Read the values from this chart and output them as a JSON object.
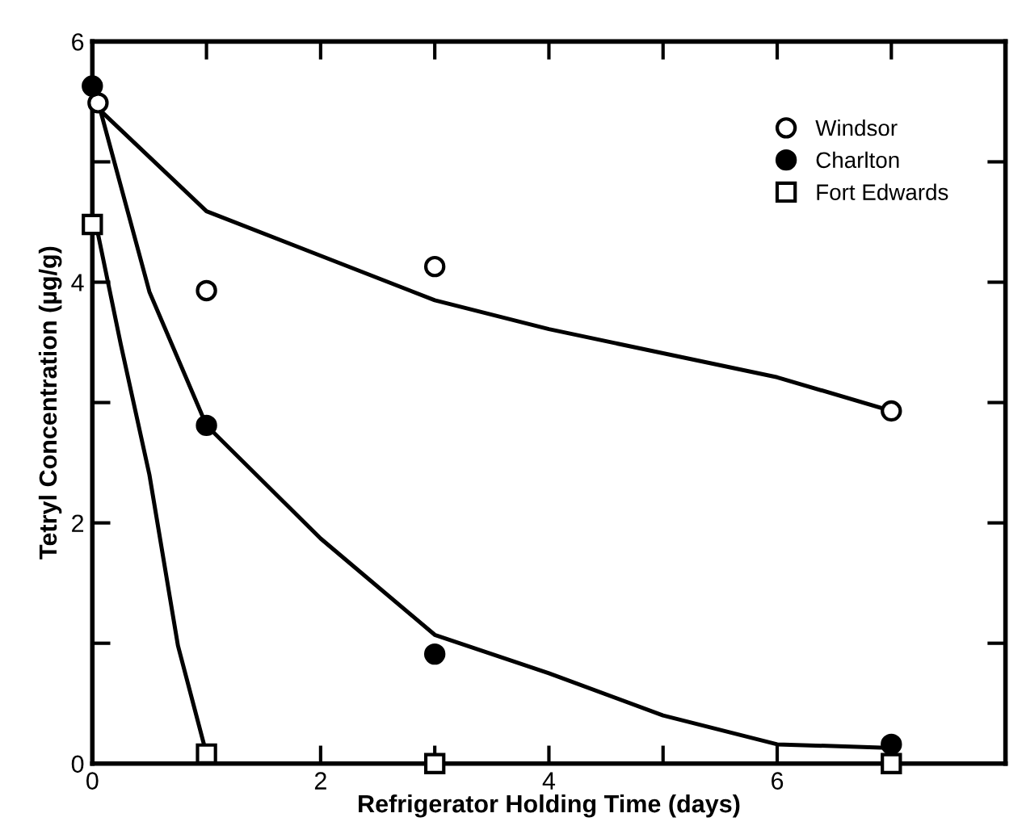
{
  "chart_data": {
    "type": "scatter",
    "xlabel": "Refrigerator Holding Time (days)",
    "ylabel": "Tetryl Concentration (µg/g)",
    "xlim": [
      0,
      8
    ],
    "ylim": [
      0,
      6
    ],
    "xticks": [
      0,
      {
        "value": 1,
        "label": null
      },
      2,
      {
        "value": 3,
        "label": null
      },
      4,
      {
        "value": 5,
        "label": null
      },
      6,
      {
        "value": 7,
        "label": null
      }
    ],
    "yticks": [
      0,
      {
        "value": 1,
        "label": null
      },
      2,
      {
        "value": 3,
        "label": null
      },
      4,
      {
        "value": 5,
        "label": null
      },
      6
    ],
    "grid": false,
    "legend": "top right",
    "series": [
      {
        "name": "Windsor",
        "type": "scatter",
        "marker": "circle",
        "color": "#ffffff",
        "x": [
          0.05,
          1,
          3,
          7
        ],
        "values": [
          5.49,
          3.93,
          4.13,
          2.93
        ]
      },
      {
        "name": "Charlton",
        "type": "scatter",
        "marker": "circle",
        "color": "#000000",
        "x": [
          0,
          1,
          3,
          7
        ],
        "values": [
          5.63,
          2.81,
          0.91,
          0.16
        ]
      },
      {
        "name": "Fort Edwards",
        "type": "scatter",
        "marker": "square",
        "color": "#ffffff",
        "x": [
          0,
          1,
          3,
          7
        ],
        "values": [
          4.48,
          0.08,
          0.0,
          0.0
        ]
      },
      {
        "type": "line",
        "marker": "none",
        "line_style": "solid",
        "color": "#000000",
        "x": [
          0.1,
          1,
          2,
          3,
          4,
          5,
          6,
          7
        ],
        "values": [
          5.4,
          4.59,
          4.22,
          3.85,
          3.61,
          3.41,
          3.21,
          2.93
        ]
      },
      {
        "type": "line",
        "marker": "none",
        "line_style": "solid",
        "color": "#000000",
        "x": [
          0.05,
          0.5,
          1,
          2,
          3,
          4,
          5,
          6,
          7
        ],
        "values": [
          5.5,
          3.92,
          2.81,
          1.87,
          1.07,
          0.75,
          0.4,
          0.16,
          0.13
        ]
      },
      {
        "type": "line",
        "marker": "none",
        "line_style": "solid",
        "color": "#000000",
        "x": [
          0.05,
          0.25,
          0.5,
          0.75,
          1
        ],
        "values": [
          4.4,
          3.48,
          2.4,
          0.98,
          0.08
        ]
      }
    ]
  }
}
